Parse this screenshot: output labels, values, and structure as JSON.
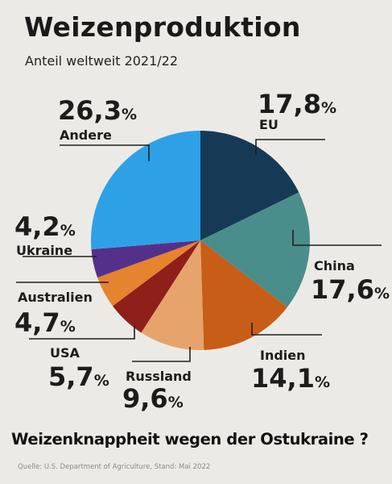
{
  "chart_data": {
    "type": "pie",
    "title": "Weizenproduktion",
    "subtitle": "Anteil weltweit 2021/22",
    "slices": [
      {
        "label": "EU",
        "value": 17.8,
        "display": "17,8",
        "color": "#163a56"
      },
      {
        "label": "China",
        "value": 17.6,
        "display": "17,6",
        "color": "#4a8e8c"
      },
      {
        "label": "Indien",
        "value": 14.1,
        "display": "14,1",
        "color": "#c85d17"
      },
      {
        "label": "Russland",
        "value": 9.6,
        "display": "9,6",
        "color": "#e7a36c"
      },
      {
        "label": "USA",
        "value": 5.7,
        "display": "5,7",
        "color": "#8e1f1a"
      },
      {
        "label": "Australien",
        "value": 4.7,
        "display": "4,7",
        "color": "#e6832e"
      },
      {
        "label": "Ukraine",
        "value": 4.2,
        "display": "4,2",
        "color": "#55308a"
      },
      {
        "label": "Andere",
        "value": 26.3,
        "display": "26,3",
        "color": "#2ea1e6"
      }
    ],
    "unit": "%"
  },
  "footer": {
    "tagline": "Weizenknappheit wegen der Ostukraine ?",
    "source": "Quelle: U.S. Department of Agriculture, Stand: Mai 2022"
  }
}
